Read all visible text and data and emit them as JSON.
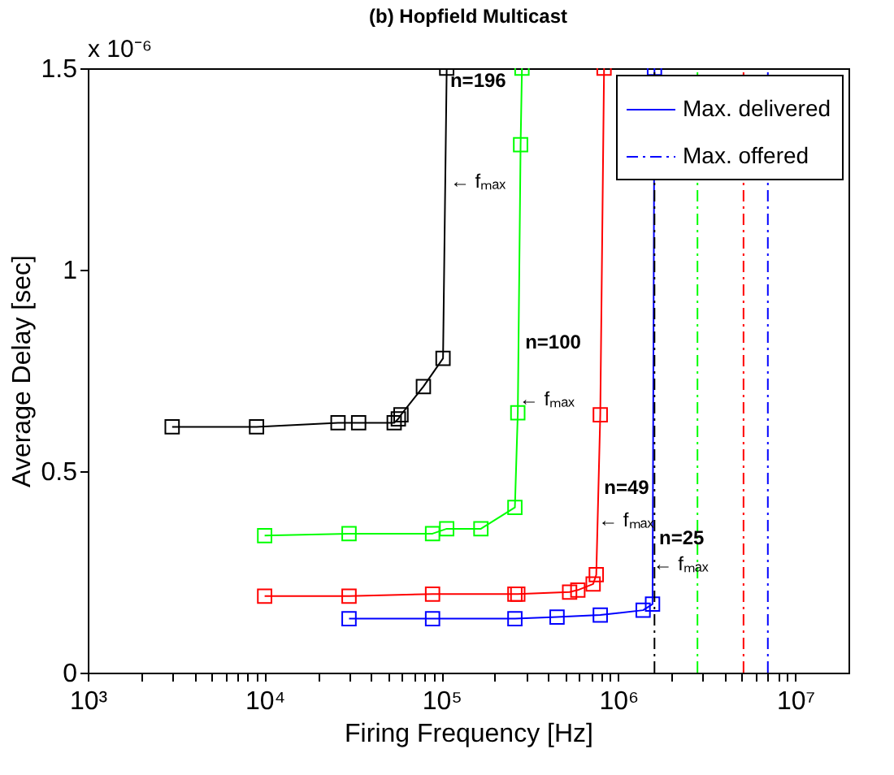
{
  "chart_data": {
    "type": "line",
    "title": "(b) Hopfield Multicast",
    "xlabel": "Firing Frequency [Hz]",
    "ylabel": "Average Delay [sec]",
    "log": "x",
    "grid": false,
    "legend": "top right",
    "marker": "square",
    "line_style": "solid",
    "xlim": [
      1000,
      20000000
    ],
    "xticks": [
      {
        "value": 1000,
        "label": "10³"
      },
      {
        "value": 2000,
        "label": null
      },
      {
        "value": 3000,
        "label": null
      },
      {
        "value": 4000,
        "label": null
      },
      {
        "value": 5000,
        "label": null
      },
      {
        "value": 6000,
        "label": null
      },
      {
        "value": 7000,
        "label": null
      },
      {
        "value": 8000,
        "label": null
      },
      {
        "value": 9000,
        "label": null
      },
      {
        "value": 10000,
        "label": "10⁴"
      },
      {
        "value": 20000,
        "label": null
      },
      {
        "value": 30000,
        "label": null
      },
      {
        "value": 40000,
        "label": null
      },
      {
        "value": 50000,
        "label": null
      },
      {
        "value": 60000,
        "label": null
      },
      {
        "value": 70000,
        "label": null
      },
      {
        "value": 80000,
        "label": null
      },
      {
        "value": 90000,
        "label": null
      },
      {
        "value": 100000,
        "label": "10⁵"
      },
      {
        "value": 200000,
        "label": null
      },
      {
        "value": 300000,
        "label": null
      },
      {
        "value": 400000,
        "label": null
      },
      {
        "value": 500000,
        "label": null
      },
      {
        "value": 600000,
        "label": null
      },
      {
        "value": 700000,
        "label": null
      },
      {
        "value": 800000,
        "label": null
      },
      {
        "value": 900000,
        "label": null
      },
      {
        "value": 1000000,
        "label": "10⁶"
      },
      {
        "value": 2000000,
        "label": null
      },
      {
        "value": 3000000,
        "label": null
      },
      {
        "value": 4000000,
        "label": null
      },
      {
        "value": 5000000,
        "label": null
      },
      {
        "value": 6000000,
        "label": null
      },
      {
        "value": 7000000,
        "label": null
      },
      {
        "value": 8000000,
        "label": null
      },
      {
        "value": 9000000,
        "label": null
      },
      {
        "value": 10000000,
        "label": "10⁷"
      }
    ],
    "ylim": [
      0,
      1.5
    ],
    "yticks": [
      0,
      0.5,
      1,
      1.5
    ],
    "series": [
      {
        "color": "#000000",
        "x": [
          3000,
          9000,
          26000,
          34000,
          54000,
          57000,
          59000,
          79000,
          102000,
          107000
        ],
        "values": [
          0.61,
          0.61,
          0.62,
          0.62,
          0.62,
          0.63,
          0.64,
          0.71,
          0.78,
          1.5
        ]
      },
      {
        "color": "#00ff00",
        "x": [
          10000,
          30000,
          89000,
          107000,
          167000,
          260000,
          270000,
          280000,
          285000
        ],
        "values": [
          0.34,
          0.345,
          0.345,
          0.357,
          0.357,
          0.41,
          0.645,
          1.31,
          1.5
        ]
      },
      {
        "color": "#ff0000",
        "x": [
          10000,
          30000,
          89000,
          260000,
          270000,
          530000,
          590000,
          720000,
          750000,
          790000,
          830000
        ],
        "values": [
          0.19,
          0.19,
          0.195,
          0.195,
          0.195,
          0.2,
          0.205,
          0.22,
          0.243,
          0.64,
          1.5
        ]
      },
      {
        "name": "Max. delivered",
        "color": "#0000ff",
        "x": [
          30000,
          89000,
          260000,
          450000,
          790000,
          1380000,
          1560000,
          1600000
        ],
        "values": [
          0.134,
          0.134,
          0.134,
          0.138,
          0.143,
          0.155,
          0.17,
          1.5
        ]
      },
      {
        "type": "line",
        "marker": "none",
        "line_style": "dashed",
        "color": "#000000",
        "x": [
          1600000,
          1600000
        ],
        "values": [
          0,
          1.5
        ]
      },
      {
        "type": "line",
        "marker": "none",
        "line_style": "dashed",
        "color": "#00ff00",
        "x": [
          2800000,
          2800000
        ],
        "values": [
          0,
          1.5
        ]
      },
      {
        "type": "line",
        "marker": "none",
        "line_style": "dashed",
        "color": "#ff0000",
        "x": [
          5100000,
          5100000
        ],
        "values": [
          0,
          1.5
        ]
      },
      {
        "name": "Max. offered",
        "type": "line",
        "marker": "none",
        "line_style": "dashed",
        "color": "#0000ff",
        "x": [
          7000000,
          7000000
        ],
        "values": [
          0,
          1.5
        ]
      }
    ],
    "annotations": [
      "x 10⁻⁶",
      {
        "text": "n=196",
        "x": 112000,
        "y": 1.47
      },
      {
        "text": "← fₘₐₓ",
        "x": 112000,
        "y": 1.22
      },
      {
        "text": "n=100",
        "x": 297000,
        "y": 0.82
      },
      {
        "text": "← fₘₐₓ",
        "x": 275000,
        "y": 0.68
      },
      {
        "text": "n=49",
        "x": 830000,
        "y": 0.46
      },
      {
        "text": "← fₘₐₓ",
        "x": 770000,
        "y": 0.38
      },
      {
        "text": "n=25",
        "x": 1700000,
        "y": 0.335
      },
      {
        "text": "← fₘₐₓ",
        "x": 1570000,
        "y": 0.27
      }
    ]
  }
}
